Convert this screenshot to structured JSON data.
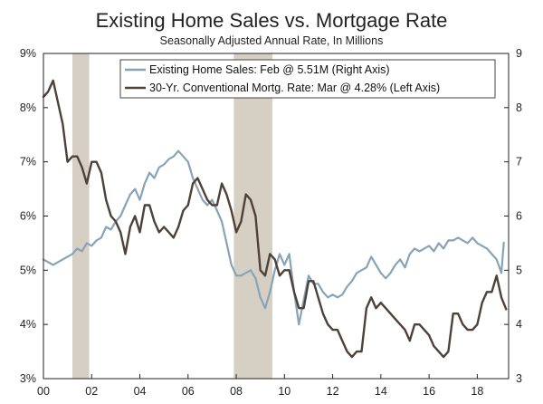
{
  "chart_data": {
    "type": "line",
    "title": "Existing Home Sales vs. Mortgage Rate",
    "subtitle": "Seasonally Adjusted Annual Rate, In Millions",
    "x_axis": {
      "range": [
        2000,
        2019.3
      ],
      "ticks": [
        2000,
        2002,
        2004,
        2006,
        2008,
        2010,
        2012,
        2014,
        2016,
        2018
      ],
      "tick_labels": [
        "00",
        "02",
        "04",
        "06",
        "08",
        "10",
        "12",
        "14",
        "16",
        "18"
      ]
    },
    "left_axis": {
      "range": [
        3,
        9
      ],
      "ticks": [
        3,
        4,
        5,
        6,
        7,
        8,
        9
      ],
      "tick_labels": [
        "3%",
        "4%",
        "5%",
        "6%",
        "7%",
        "8%",
        "9%"
      ]
    },
    "right_axis": {
      "range": [
        3,
        9
      ],
      "ticks": [
        3,
        4,
        5,
        6,
        7,
        8,
        9
      ],
      "tick_labels": [
        "3",
        "4",
        "5",
        "6",
        "7",
        "8",
        "9"
      ]
    },
    "grid": false,
    "legend_position": "top-right",
    "recessions": [
      {
        "start": 2001.2,
        "end": 2001.9
      },
      {
        "start": 2007.9,
        "end": 2009.5
      }
    ],
    "series": [
      {
        "name": "Existing Home Sales: Feb @ 5.51M (Right Axis)",
        "axis": "right",
        "color": "#87A3B8",
        "x": [
          2000.0,
          2000.2,
          2000.4,
          2000.6,
          2000.8,
          2001.0,
          2001.2,
          2001.4,
          2001.6,
          2001.8,
          2002.0,
          2002.2,
          2002.4,
          2002.6,
          2002.8,
          2003.0,
          2003.2,
          2003.4,
          2003.6,
          2003.8,
          2004.0,
          2004.2,
          2004.4,
          2004.6,
          2004.8,
          2005.0,
          2005.2,
          2005.4,
          2005.6,
          2005.8,
          2006.0,
          2006.2,
          2006.4,
          2006.6,
          2006.8,
          2007.0,
          2007.2,
          2007.4,
          2007.6,
          2007.8,
          2008.0,
          2008.2,
          2008.4,
          2008.6,
          2008.8,
          2009.0,
          2009.2,
          2009.4,
          2009.6,
          2009.8,
          2010.0,
          2010.2,
          2010.4,
          2010.6,
          2010.8,
          2011.0,
          2011.2,
          2011.4,
          2011.6,
          2011.8,
          2012.0,
          2012.2,
          2012.4,
          2012.6,
          2012.8,
          2013.0,
          2013.2,
          2013.4,
          2013.6,
          2013.8,
          2014.0,
          2014.2,
          2014.4,
          2014.6,
          2014.8,
          2015.0,
          2015.2,
          2015.4,
          2015.6,
          2015.8,
          2016.0,
          2016.2,
          2016.4,
          2016.6,
          2016.8,
          2017.0,
          2017.2,
          2017.4,
          2017.6,
          2017.8,
          2018.0,
          2018.2,
          2018.4,
          2018.6,
          2018.8,
          2019.0,
          2019.1
        ],
        "values": [
          5.2,
          5.15,
          5.1,
          5.15,
          5.2,
          5.25,
          5.3,
          5.4,
          5.35,
          5.5,
          5.45,
          5.55,
          5.6,
          5.8,
          5.75,
          5.9,
          6.0,
          6.2,
          6.4,
          6.5,
          6.3,
          6.6,
          6.8,
          6.7,
          6.9,
          6.95,
          7.05,
          7.1,
          7.2,
          7.1,
          7.0,
          6.7,
          6.5,
          6.3,
          6.2,
          6.3,
          6.1,
          5.9,
          5.5,
          5.1,
          4.9,
          4.9,
          4.95,
          5.0,
          4.85,
          4.5,
          4.3,
          4.6,
          5.0,
          5.3,
          5.1,
          5.3,
          4.6,
          4.0,
          4.45,
          4.9,
          4.75,
          4.75,
          4.6,
          4.5,
          4.55,
          4.5,
          4.55,
          4.7,
          4.8,
          4.95,
          5.0,
          5.05,
          5.25,
          5.1,
          4.95,
          4.85,
          4.95,
          5.1,
          5.2,
          5.05,
          5.3,
          5.4,
          5.35,
          5.4,
          5.45,
          5.35,
          5.5,
          5.4,
          5.55,
          5.55,
          5.6,
          5.55,
          5.5,
          5.6,
          5.5,
          5.45,
          5.4,
          5.3,
          5.2,
          4.95,
          5.51
        ]
      },
      {
        "name": "30-Yr. Conventional Mortg. Rate: Mar @ 4.28% (Left Axis)",
        "axis": "left",
        "color": "#4E4238",
        "x": [
          2000.0,
          2000.2,
          2000.4,
          2000.6,
          2000.8,
          2001.0,
          2001.2,
          2001.4,
          2001.6,
          2001.8,
          2002.0,
          2002.2,
          2002.4,
          2002.6,
          2002.8,
          2003.0,
          2003.2,
          2003.4,
          2003.6,
          2003.8,
          2004.0,
          2004.2,
          2004.4,
          2004.6,
          2004.8,
          2005.0,
          2005.2,
          2005.4,
          2005.6,
          2005.8,
          2006.0,
          2006.2,
          2006.4,
          2006.6,
          2006.8,
          2007.0,
          2007.2,
          2007.4,
          2007.6,
          2007.8,
          2008.0,
          2008.2,
          2008.4,
          2008.6,
          2008.8,
          2009.0,
          2009.2,
          2009.4,
          2009.6,
          2009.8,
          2010.0,
          2010.2,
          2010.4,
          2010.6,
          2010.8,
          2011.0,
          2011.2,
          2011.4,
          2011.6,
          2011.8,
          2012.0,
          2012.2,
          2012.4,
          2012.6,
          2012.8,
          2013.0,
          2013.2,
          2013.4,
          2013.6,
          2013.8,
          2014.0,
          2014.2,
          2014.4,
          2014.6,
          2014.8,
          2015.0,
          2015.2,
          2015.4,
          2015.6,
          2015.8,
          2016.0,
          2016.2,
          2016.4,
          2016.6,
          2016.8,
          2017.0,
          2017.2,
          2017.4,
          2017.6,
          2017.8,
          2018.0,
          2018.2,
          2018.4,
          2018.6,
          2018.8,
          2019.0,
          2019.2
        ],
        "values": [
          8.2,
          8.3,
          8.5,
          8.1,
          7.7,
          7.0,
          7.1,
          7.1,
          6.9,
          6.6,
          7.0,
          7.0,
          6.8,
          6.3,
          6.0,
          5.9,
          5.7,
          5.3,
          5.8,
          6.0,
          5.7,
          6.2,
          6.2,
          5.9,
          5.7,
          5.8,
          5.7,
          5.6,
          5.8,
          6.1,
          6.2,
          6.6,
          6.7,
          6.5,
          6.3,
          6.2,
          6.2,
          6.6,
          6.4,
          6.1,
          5.7,
          5.9,
          6.4,
          6.3,
          6.0,
          5.0,
          4.9,
          5.3,
          5.2,
          4.9,
          5.0,
          5.0,
          4.6,
          4.3,
          4.3,
          4.8,
          4.8,
          4.5,
          4.2,
          4.0,
          3.9,
          3.9,
          3.7,
          3.5,
          3.4,
          3.5,
          3.5,
          4.3,
          4.5,
          4.3,
          4.4,
          4.3,
          4.2,
          4.1,
          4.0,
          3.9,
          3.7,
          4.0,
          4.0,
          3.9,
          3.8,
          3.6,
          3.5,
          3.4,
          3.5,
          4.2,
          4.2,
          4.0,
          3.9,
          3.9,
          4.0,
          4.4,
          4.6,
          4.6,
          4.9,
          4.5,
          4.28
        ]
      }
    ]
  }
}
